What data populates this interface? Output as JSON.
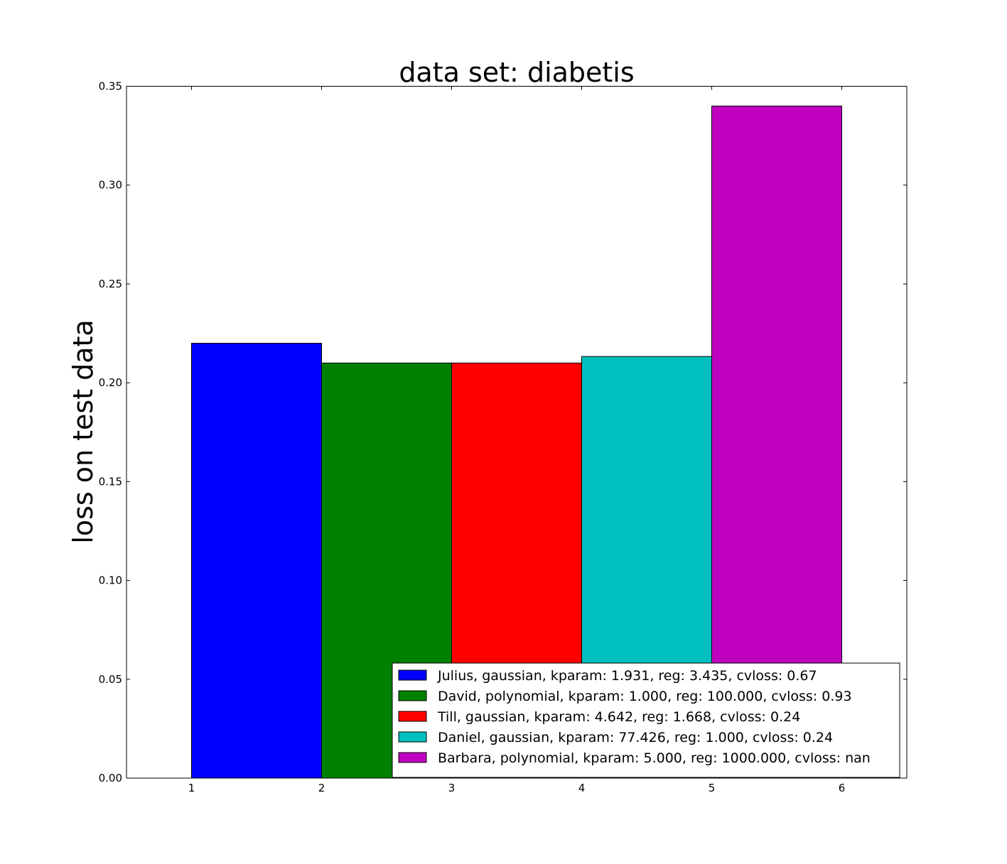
{
  "chart_data": {
    "type": "bar",
    "title": "data set: diabetis",
    "xlabel": "",
    "ylabel": "loss on test data",
    "xlim": [
      0.5,
      6.5
    ],
    "ylim": [
      0,
      0.35
    ],
    "xticks": [
      1,
      2,
      3,
      4,
      5,
      6
    ],
    "yticks": [
      0.0,
      0.05,
      0.1,
      0.15,
      0.2,
      0.25,
      0.3,
      0.35
    ],
    "ytick_labels": [
      "0.00",
      "0.05",
      "0.10",
      "0.15",
      "0.20",
      "0.25",
      "0.30",
      "0.35"
    ],
    "grid": false,
    "legend_position": "lower-right",
    "series": [
      {
        "name": "Julius, gaussian, kparam: 1.931, reg: 3.435, cvloss: 0.67",
        "x_start": 1,
        "x_end": 2,
        "value": 0.22,
        "color": "#0000ff"
      },
      {
        "name": "David, polynomial, kparam: 1.000, reg: 100.000, cvloss: 0.93",
        "x_start": 2,
        "x_end": 3,
        "value": 0.21,
        "color": "#008000"
      },
      {
        "name": "Till, gaussian, kparam: 4.642, reg: 1.668, cvloss: 0.24",
        "x_start": 3,
        "x_end": 4,
        "value": 0.21,
        "color": "#ff0000"
      },
      {
        "name": "Daniel, gaussian, kparam: 77.426, reg: 1.000, cvloss: 0.24",
        "x_start": 4,
        "x_end": 5,
        "value": 0.2133,
        "color": "#00bfbf"
      },
      {
        "name": "Barbara, polynomial, kparam: 5.000, reg: 1000.000, cvloss: nan",
        "x_start": 5,
        "x_end": 6,
        "value": 0.34,
        "color": "#bf00bf"
      }
    ]
  }
}
